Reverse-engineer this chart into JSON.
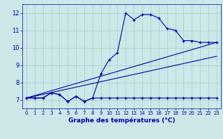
{
  "xlabel": "Graphe des températures (°C)",
  "bg_color": "#cce8e8",
  "grid_color": "#aacccc",
  "line_color": "#0000aa",
  "xmin": -0.5,
  "xmax": 23.5,
  "ymin": 6.5,
  "ymax": 12.5,
  "yticks": [
    7,
    8,
    9,
    10,
    11,
    12
  ],
  "xticks": [
    0,
    1,
    2,
    3,
    4,
    5,
    6,
    7,
    8,
    9,
    10,
    11,
    12,
    13,
    14,
    15,
    16,
    17,
    18,
    19,
    20,
    21,
    22,
    23
  ],
  "series_main_x": [
    0,
    1,
    2,
    3,
    4,
    5,
    6,
    7,
    8,
    9,
    10,
    11,
    12,
    13,
    14,
    15,
    16,
    17,
    18,
    19,
    20,
    21,
    22,
    23
  ],
  "series_main_y": [
    7.1,
    7.1,
    7.1,
    7.4,
    7.3,
    6.9,
    7.2,
    6.9,
    7.1,
    8.5,
    9.3,
    9.7,
    12.0,
    11.6,
    11.9,
    11.9,
    11.7,
    11.1,
    11.0,
    10.4,
    10.4,
    10.3,
    10.3,
    10.3
  ],
  "series_flat_x": [
    0,
    1,
    2,
    3,
    4,
    5,
    6,
    7,
    8,
    9,
    10,
    11,
    12,
    13,
    14,
    15,
    16,
    17,
    18,
    19,
    20,
    21,
    22,
    23
  ],
  "series_flat_y": [
    7.1,
    7.1,
    7.1,
    7.4,
    7.3,
    6.9,
    7.2,
    6.9,
    7.1,
    7.1,
    7.1,
    7.1,
    7.1,
    7.1,
    7.1,
    7.1,
    7.1,
    7.1,
    7.1,
    7.1,
    7.1,
    7.1,
    7.1,
    7.1
  ],
  "line1_x": [
    0,
    23
  ],
  "line1_y": [
    7.1,
    10.3
  ],
  "line2_x": [
    0,
    23
  ],
  "line2_y": [
    7.1,
    9.5
  ]
}
